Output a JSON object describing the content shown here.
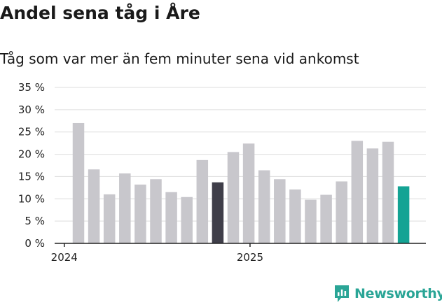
{
  "title": "Andel sena tåg i Åre",
  "subtitle": "Tåg som var mer än fem minuter sena vid ankomst",
  "brand": {
    "name": "Newsworthy",
    "color": "#2aa596"
  },
  "chart_data": {
    "type": "bar",
    "ylim": [
      0,
      35
    ],
    "y_ticks": [
      0,
      5,
      10,
      15,
      20,
      25,
      30,
      35
    ],
    "y_tick_labels": [
      "0 %",
      "5 %",
      "10 %",
      "15 %",
      "20 %",
      "25 %",
      "30 %",
      "35 %"
    ],
    "x_tick_labels": [
      {
        "label": "2024",
        "at_index": 0
      },
      {
        "label": "2025",
        "at_index": 12
      }
    ],
    "grid": true,
    "values": [
      27.0,
      16.6,
      11.0,
      15.7,
      13.2,
      14.4,
      11.5,
      10.4,
      18.7,
      13.7,
      20.5,
      22.4,
      16.4,
      14.4,
      12.1,
      9.8,
      10.9,
      13.9,
      23.0,
      21.3,
      22.8,
      12.8
    ],
    "colors": {
      "default": "#c8c7cc",
      "highlight_dark": "#3f3e49",
      "highlight_teal": "#14a394"
    },
    "highlight_dark_indices": [
      9
    ],
    "highlight_teal_indices": [
      21
    ]
  }
}
